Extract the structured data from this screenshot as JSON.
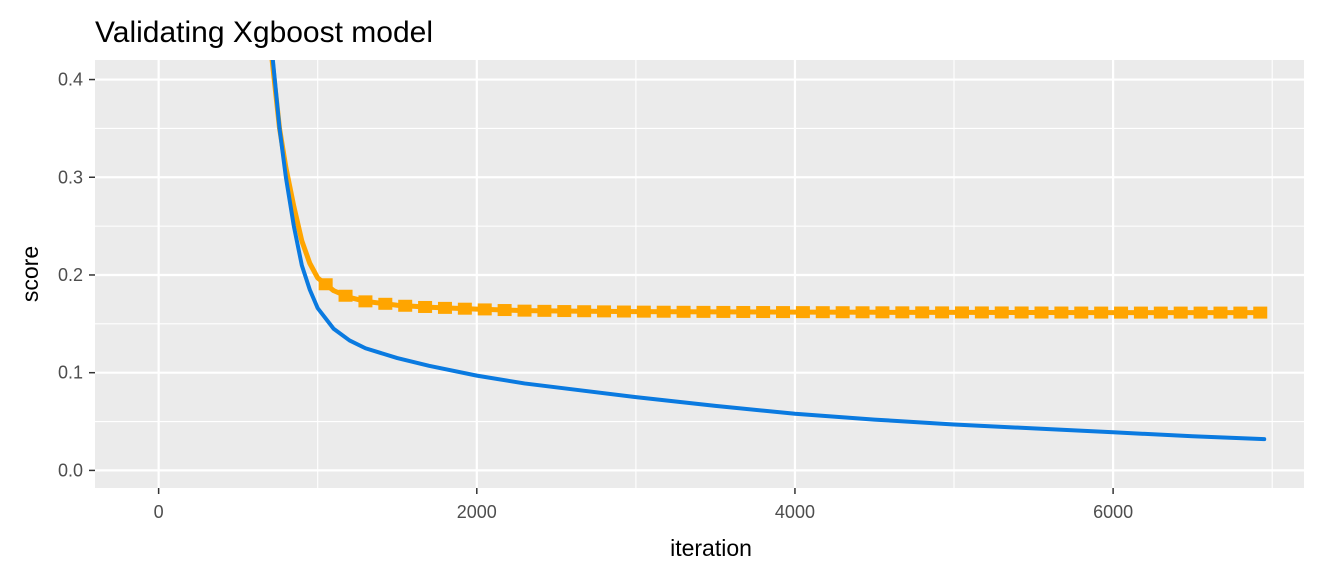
{
  "chart_data": {
    "type": "line",
    "title": "Validating Xgboost model",
    "xlabel": "iteration",
    "ylabel": "score",
    "xlim": [
      -400,
      7200
    ],
    "ylim": [
      -0.018,
      0.42
    ],
    "x_ticks": [
      0,
      2000,
      4000,
      6000
    ],
    "x_tick_labels": [
      "0",
      "2000",
      "4000",
      "6000"
    ],
    "y_ticks": [
      0.0,
      0.1,
      0.2,
      0.3,
      0.4
    ],
    "y_tick_labels": [
      "0.0",
      "0.1",
      "0.2",
      "0.3",
      "0.4"
    ],
    "grid": true,
    "legend": "none",
    "panel_background": "#ebebeb",
    "grid_color": "#ffffff",
    "series": [
      {
        "color": "#0a7ae0",
        "line_style": "solid",
        "x": [
          700,
          760,
          800,
          850,
          900,
          950,
          1000,
          1100,
          1200,
          1300,
          1500,
          1700,
          2000,
          2300,
          2600,
          3000,
          3500,
          4000,
          4500,
          5000,
          5500,
          6000,
          6500,
          6950
        ],
        "y": [
          0.45,
          0.35,
          0.3,
          0.25,
          0.21,
          0.185,
          0.166,
          0.145,
          0.133,
          0.125,
          0.115,
          0.107,
          0.097,
          0.089,
          0.083,
          0.075,
          0.066,
          0.058,
          0.052,
          0.047,
          0.043,
          0.039,
          0.035,
          0.032
        ]
      },
      {
        "color": "#ffa500",
        "line_style": "solid",
        "marker": "square",
        "x": [
          700,
          760,
          800,
          850,
          900,
          950,
          1000,
          1100,
          1200,
          1300,
          1500,
          1700,
          2000,
          2300,
          2600,
          3000,
          3500,
          4000,
          4500,
          5000,
          5500,
          6000,
          6500,
          6950
        ],
        "y": [
          0.44,
          0.35,
          0.31,
          0.27,
          0.235,
          0.212,
          0.197,
          0.184,
          0.177,
          0.173,
          0.169,
          0.167,
          0.165,
          0.1635,
          0.163,
          0.1625,
          0.1622,
          0.162,
          0.1618,
          0.1617,
          0.1616,
          0.1615,
          0.1615,
          0.1615
        ]
      }
    ]
  }
}
